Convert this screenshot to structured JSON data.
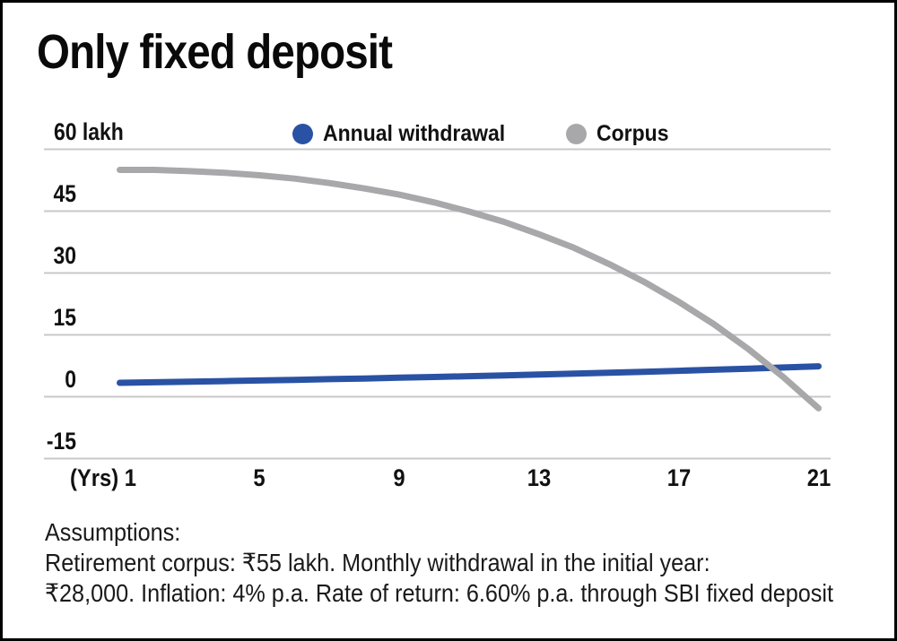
{
  "title": "Only fixed deposit",
  "legend": {
    "items": [
      {
        "label": "Annual withdrawal",
        "color": "#2a52a4"
      },
      {
        "label": "Corpus",
        "color": "#a8a8ab"
      }
    ]
  },
  "y_axis": {
    "ticks": [
      "60 lakh",
      "45",
      "30",
      "15",
      "0",
      "-15"
    ]
  },
  "x_axis": {
    "prefix": "(Yrs)",
    "ticks": [
      "1",
      "5",
      "9",
      "13",
      "17",
      "21"
    ]
  },
  "assumptions": {
    "lines": [
      "Assumptions:",
      "Retirement corpus: ₹55 lakh. Monthly withdrawal in the initial year:",
      "₹28,000. Inflation: 4% p.a. Rate of return: 6.60% p.a. through SBI fixed deposit"
    ]
  },
  "colors": {
    "withdrawal_line": "#2a52a4",
    "corpus_line": "#a8a8ab",
    "gridline": "#c8c8c8",
    "text": "#111111"
  },
  "chart_data": {
    "type": "line",
    "title": "Only fixed deposit",
    "xlabel": "(Yrs)",
    "ylabel": "lakh",
    "ylim": [
      -15,
      60
    ],
    "xlim": [
      1,
      21
    ],
    "yticks": [
      60,
      45,
      30,
      15,
      0,
      -15
    ],
    "xticks": [
      1,
      5,
      9,
      13,
      17,
      21
    ],
    "grid": "horizontal",
    "legend_position": "top",
    "x": [
      1,
      2,
      3,
      4,
      5,
      6,
      7,
      8,
      9,
      10,
      11,
      12,
      13,
      14,
      15,
      16,
      17,
      18,
      19,
      20,
      21
    ],
    "series": [
      {
        "name": "Annual withdrawal",
        "color": "#2a52a4",
        "values": [
          3.36,
          3.49,
          3.63,
          3.78,
          3.93,
          4.09,
          4.25,
          4.42,
          4.6,
          4.78,
          4.97,
          5.17,
          5.38,
          5.59,
          5.82,
          6.05,
          6.29,
          6.55,
          6.81,
          7.08,
          7.36
        ]
      },
      {
        "name": "Corpus",
        "color": "#a8a8ab",
        "values": [
          55.0,
          55.0,
          54.7,
          54.3,
          53.7,
          52.9,
          51.8,
          50.5,
          49.0,
          47.1,
          44.9,
          42.4,
          39.4,
          36.1,
          32.2,
          27.9,
          23.0,
          17.6,
          11.5,
          4.7,
          -2.8
        ]
      }
    ]
  }
}
